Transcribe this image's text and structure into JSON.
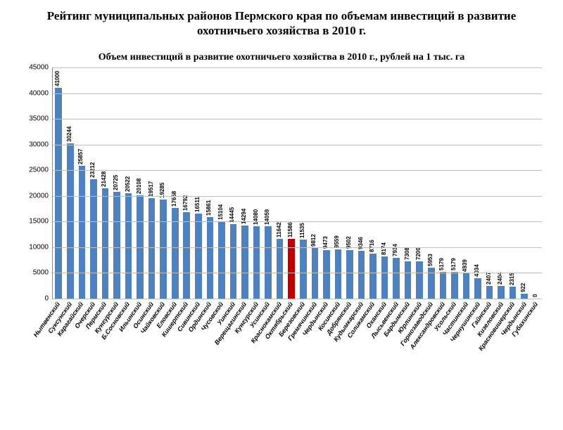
{
  "page_title": "Рейтинг муниципальных районов Пермского края по объемам инвестиций в развитие охотничьего хозяйства в 2010 г.",
  "chart": {
    "type": "bar",
    "title": "Объем инвестиций в развитие охотничьего хозяйства в 2010 г., рублей на 1 тыс. га",
    "title_fontsize": 14,
    "background_color": "#ffffff",
    "grid_color": "#bfbfbf",
    "axis_color": "#888888",
    "bar_default_color": "#4f81bd",
    "bar_highlight_color": "#c00000",
    "bar_width_ratio": 0.58,
    "label_fontsize": 8,
    "ytick_fontsize": 10,
    "xtick_fontsize": 9,
    "xtick_angle_deg": -55,
    "ylim": [
      0,
      45000
    ],
    "ytick_step": 5000,
    "categories": [
      "Нытвенский",
      "Суксунский",
      "Карагайский",
      "Очерский",
      "Пермский",
      "Кунгурский",
      "Б.Сосновский",
      "Ильинский",
      "Осинский",
      "Чайковский",
      "Еловский",
      "Кишертский",
      "Сивинский",
      "Ординский",
      "Чусовской",
      "Уинский",
      "Верещагинский",
      "Кунгурский",
      "Усинский",
      "Краснокамский",
      "Октябрьский",
      "Березовский",
      "Гремячинский",
      "Чердынский",
      "Косинский",
      "Добрянский",
      "Кудымкарский",
      "Соликамский",
      "Оханский",
      "Лысьвенский",
      "Бардымский",
      "Юрлинский",
      "Горнозаводский",
      "Александровский",
      "Усольский",
      "Частинский",
      "Чернушинский",
      "Гайнский",
      "Кизеловский",
      "Красновишерский",
      "Чердынский",
      "Губахинский"
    ],
    "values": [
      41000,
      30244,
      25857,
      23212,
      21428,
      20725,
      20522,
      20108,
      19517,
      19285,
      17658,
      16792,
      16511,
      15861,
      15104,
      14445,
      14294,
      14080,
      14059,
      11642,
      11586,
      11535,
      9812,
      9473,
      9559,
      9502,
      9346,
      8716,
      8174,
      7934,
      7308,
      7200,
      5953,
      5179,
      5179,
      4939,
      4034,
      2407,
      2404,
      2315,
      922,
      0
    ],
    "highlight_index": 20
  }
}
